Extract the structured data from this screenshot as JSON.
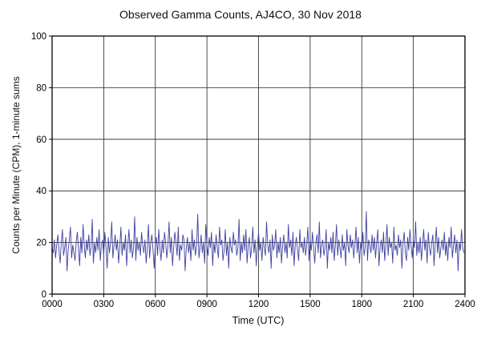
{
  "title": "Observed Gamma Counts, AJ4CO, 30 Nov 2018",
  "chart_data": {
    "type": "line",
    "title": "Observed Gamma Counts, AJ4CO, 30 Nov 2018",
    "xlabel": "Time (UTC)",
    "ylabel": "Counts per Minute (CPM), 1-minute sums",
    "x_tick_labels": [
      "0000",
      "0300",
      "0600",
      "0900",
      "1200",
      "1500",
      "1800",
      "2100",
      "2400"
    ],
    "x_minutes_start": 0,
    "x_minutes_end": 1440,
    "sample_interval_minutes": 4,
    "ylim": [
      0,
      100
    ],
    "y_ticks": [
      0,
      20,
      40,
      60,
      80,
      100
    ],
    "grid": true,
    "legend_position": "none",
    "series": [
      {
        "name": "Gamma counts (CPM), 1-minute sums",
        "color": "#4040a0",
        "values": [
          18,
          16,
          21,
          14,
          19,
          23,
          17,
          12,
          20,
          25,
          15,
          18,
          22,
          9,
          17,
          21,
          26,
          14,
          19,
          16,
          13,
          20,
          24,
          18,
          11,
          22,
          16,
          27,
          19,
          14,
          21,
          17,
          23,
          15,
          18,
          29,
          12,
          20,
          16,
          22,
          17,
          25,
          13,
          19,
          21,
          15,
          24,
          18,
          10,
          22,
          16,
          20,
          28,
          14,
          19,
          23,
          17,
          21,
          12,
          18,
          26,
          15,
          20,
          17,
          23,
          11,
          19,
          25,
          16,
          21,
          14,
          18,
          30,
          13,
          22,
          17,
          20,
          15,
          24,
          19,
          16,
          21,
          12,
          18,
          27,
          14,
          20,
          23,
          17,
          10,
          19,
          22,
          15,
          25,
          18,
          13,
          21,
          16,
          24,
          20,
          14,
          19,
          28,
          16,
          22,
          11,
          18,
          24,
          20,
          15,
          26,
          13,
          19,
          17,
          23,
          21,
          9,
          18,
          22,
          16,
          20,
          13,
          25,
          17,
          21,
          15,
          19,
          31,
          14,
          18,
          23,
          16,
          20,
          12,
          27,
          19,
          15,
          22,
          18,
          24,
          11,
          20,
          16,
          23,
          18,
          14,
          26,
          19,
          21,
          13,
          17,
          25,
          15,
          20,
          10,
          22,
          18,
          16,
          24,
          19,
          21,
          15,
          18,
          29,
          13,
          20,
          16,
          23,
          17,
          25,
          12,
          19,
          22,
          14,
          18,
          26,
          16,
          21,
          11,
          19,
          24,
          17,
          20,
          13,
          22,
          18,
          15,
          28,
          19,
          16,
          21,
          10,
          23,
          17,
          19,
          25,
          14,
          20,
          16,
          22,
          12,
          19,
          23,
          16,
          20,
          14,
          27,
          18,
          21,
          15,
          24,
          11,
          19,
          22,
          17,
          13,
          25,
          18,
          20,
          16,
          22,
          15,
          19,
          26,
          13,
          21,
          17,
          24,
          18,
          12,
          20,
          23,
          16,
          28,
          14,
          19,
          21,
          15,
          18,
          25,
          10,
          20,
          17,
          22,
          16,
          24,
          13,
          19,
          27,
          15,
          21,
          18,
          14,
          23,
          17,
          20,
          11,
          25,
          19,
          16,
          23,
          18,
          21,
          14,
          19,
          26,
          16,
          22,
          12,
          20,
          17,
          24,
          15,
          18,
          32,
          13,
          21,
          19,
          16,
          23,
          17,
          22,
          14,
          20,
          25,
          11,
          18,
          21,
          16,
          24,
          13,
          19,
          27,
          15,
          22,
          18,
          20,
          12,
          26,
          17,
          19,
          15,
          23,
          18,
          21,
          10,
          20,
          24,
          16,
          13,
          22,
          17,
          25,
          19,
          14,
          21,
          18,
          28,
          15,
          20,
          16,
          22,
          13,
          19,
          25,
          17,
          21,
          12,
          24,
          18,
          15,
          20,
          23,
          11,
          19,
          26,
          16,
          22,
          14,
          18,
          21,
          17,
          24,
          15,
          20,
          13,
          22,
          18,
          26,
          14,
          19,
          23,
          16,
          21,
          9,
          20,
          17,
          25,
          18,
          16
        ]
      }
    ],
    "colors": {
      "series": "#4040a0",
      "grid": "#222222",
      "frame": "#000000",
      "text": "#111111",
      "background": "#ffffff"
    }
  }
}
